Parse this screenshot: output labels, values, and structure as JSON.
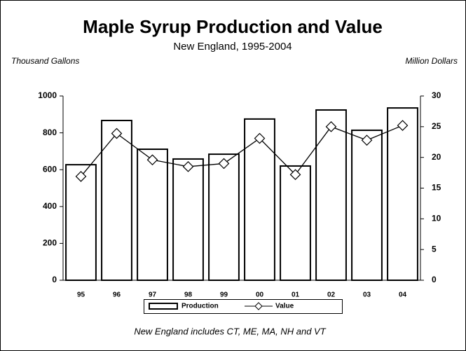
{
  "chart_data": {
    "type": "bar-line",
    "title": "Maple Syrup Production and Value",
    "subtitle": "New England, 1995-2004",
    "y_label": "Thousand Gallons",
    "y2_label": "Million Dollars",
    "note": "New England includes CT, ME, MA, NH and VT",
    "categories": [
      "95",
      "96",
      "97",
      "98",
      "99",
      "00",
      "01",
      "02",
      "03",
      "04"
    ],
    "series": [
      {
        "name": "Production",
        "type": "bar",
        "color": "#ffffff",
        "values": [
          627,
          867,
          711,
          658,
          684,
          875,
          620,
          924,
          814,
          935
        ]
      },
      {
        "name": "Value",
        "type": "line",
        "axis": "y2",
        "color": "#000000",
        "values": [
          16.9,
          23.9,
          19.6,
          18.5,
          19.0,
          23.1,
          17.2,
          25.0,
          22.8,
          25.2
        ]
      }
    ],
    "ylim": [
      0,
      1000
    ],
    "yticks": [
      0,
      200,
      400,
      600,
      800,
      1000
    ],
    "y2lim": [
      0,
      30
    ],
    "y2ticks": [
      0,
      5,
      10,
      15,
      20,
      25,
      30
    ],
    "legend": "bottom"
  }
}
